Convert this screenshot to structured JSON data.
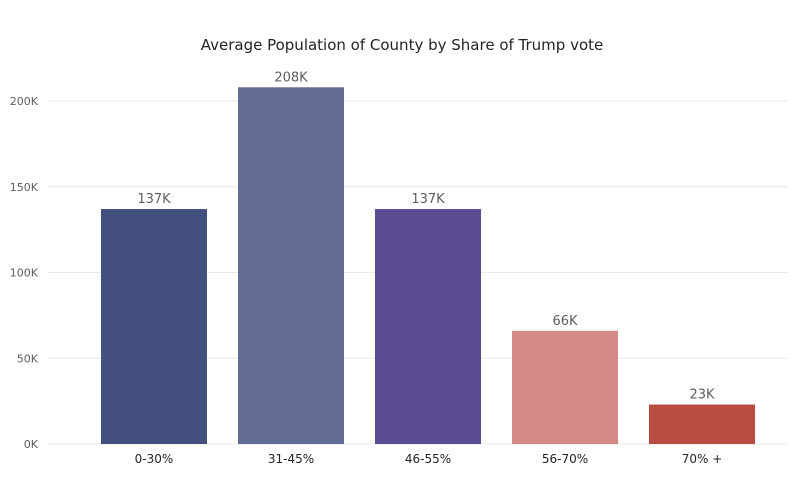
{
  "chart_data": {
    "type": "bar",
    "title": "Average Population of County by Share of Trump vote",
    "categories": [
      "0-30%",
      "31-45%",
      "46-55%",
      "56-70%",
      "70% +"
    ],
    "values": [
      137000,
      208000,
      137000,
      66000,
      23000
    ],
    "data_labels": [
      "137K",
      "208K",
      "137K",
      "66K",
      "23K"
    ],
    "colors": [
      "#434F7D",
      "#636C95",
      "#5B4B90",
      "#D38A84",
      "#B84B42"
    ],
    "ylim": [
      0,
      200000
    ],
    "yticks": [
      0,
      50000,
      100000,
      150000,
      200000
    ],
    "ytick_labels": [
      "0K",
      "50K",
      "100K",
      "150K",
      "200K"
    ],
    "grid": true,
    "xlabel": "",
    "ylabel": ""
  }
}
